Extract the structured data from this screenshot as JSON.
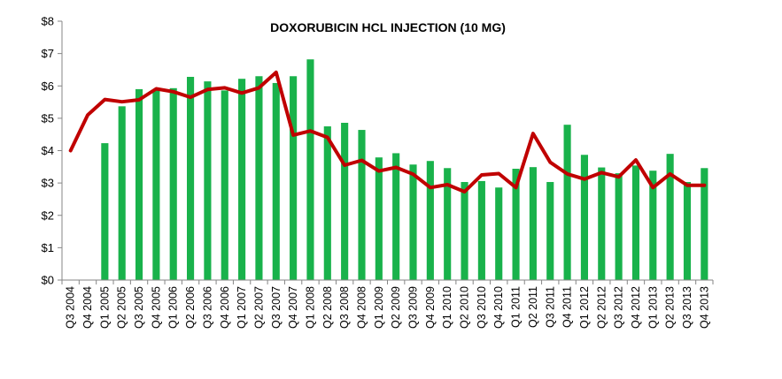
{
  "chart_data": {
    "type": "bar",
    "title": "DOXORUBICIN  HCL INJECTION (10 MG)",
    "xlabel": "",
    "ylabel": "",
    "ylim": [
      0,
      8
    ],
    "yticks": [
      "$0",
      "$1",
      "$2",
      "$3",
      "$4",
      "$5",
      "$6",
      "$7",
      "$8"
    ],
    "grid": false,
    "legend": "none",
    "categories": [
      "Q3 2004",
      "Q4 2004",
      "Q1 2005",
      "Q2 2005",
      "Q3 2005",
      "Q4 2005",
      "Q1 2006",
      "Q2 2006",
      "Q3 2006",
      "Q4 2006",
      "Q1 2007",
      "Q2 2007",
      "Q3 2007",
      "Q4 2007",
      "Q1 2008",
      "Q2 2008",
      "Q3 2008",
      "Q4 2008",
      "Q1 2009",
      "Q2 2009",
      "Q3 2009",
      "Q4 2009",
      "Q1 2010",
      "Q2 2010",
      "Q3 2010",
      "Q4 2010",
      "Q1 2011",
      "Q2 2011",
      "Q3 2011",
      "Q4 2011",
      "Q1 2012",
      "Q2 2012",
      "Q3 2012",
      "Q4 2012",
      "Q1 2013",
      "Q2 2013",
      "Q3 2013",
      "Q4 2013"
    ],
    "series": [
      {
        "type": "bar",
        "color": "#19b24b",
        "values": [
          null,
          null,
          4.23,
          5.37,
          5.9,
          5.87,
          5.93,
          6.28,
          6.14,
          5.86,
          6.22,
          6.3,
          6.09,
          6.3,
          6.82,
          4.75,
          4.86,
          4.64,
          3.79,
          3.92,
          3.57,
          3.68,
          3.46,
          3.03,
          3.06,
          2.86,
          3.44,
          3.49,
          3.03,
          4.8,
          3.87,
          3.48,
          3.3,
          3.54,
          3.38,
          3.9,
          3.03,
          3.46
        ]
      },
      {
        "type": "line",
        "color": "#c00000",
        "values": [
          4.0,
          5.1,
          5.58,
          5.51,
          5.57,
          5.91,
          5.82,
          5.65,
          5.89,
          5.94,
          5.78,
          5.94,
          6.42,
          4.48,
          4.61,
          4.41,
          3.55,
          3.7,
          3.37,
          3.48,
          3.27,
          2.86,
          2.95,
          2.73,
          3.25,
          3.29,
          2.86,
          4.53,
          3.64,
          3.28,
          3.12,
          3.32,
          3.19,
          3.71,
          2.86,
          3.28,
          2.93,
          2.93
        ]
      }
    ]
  }
}
